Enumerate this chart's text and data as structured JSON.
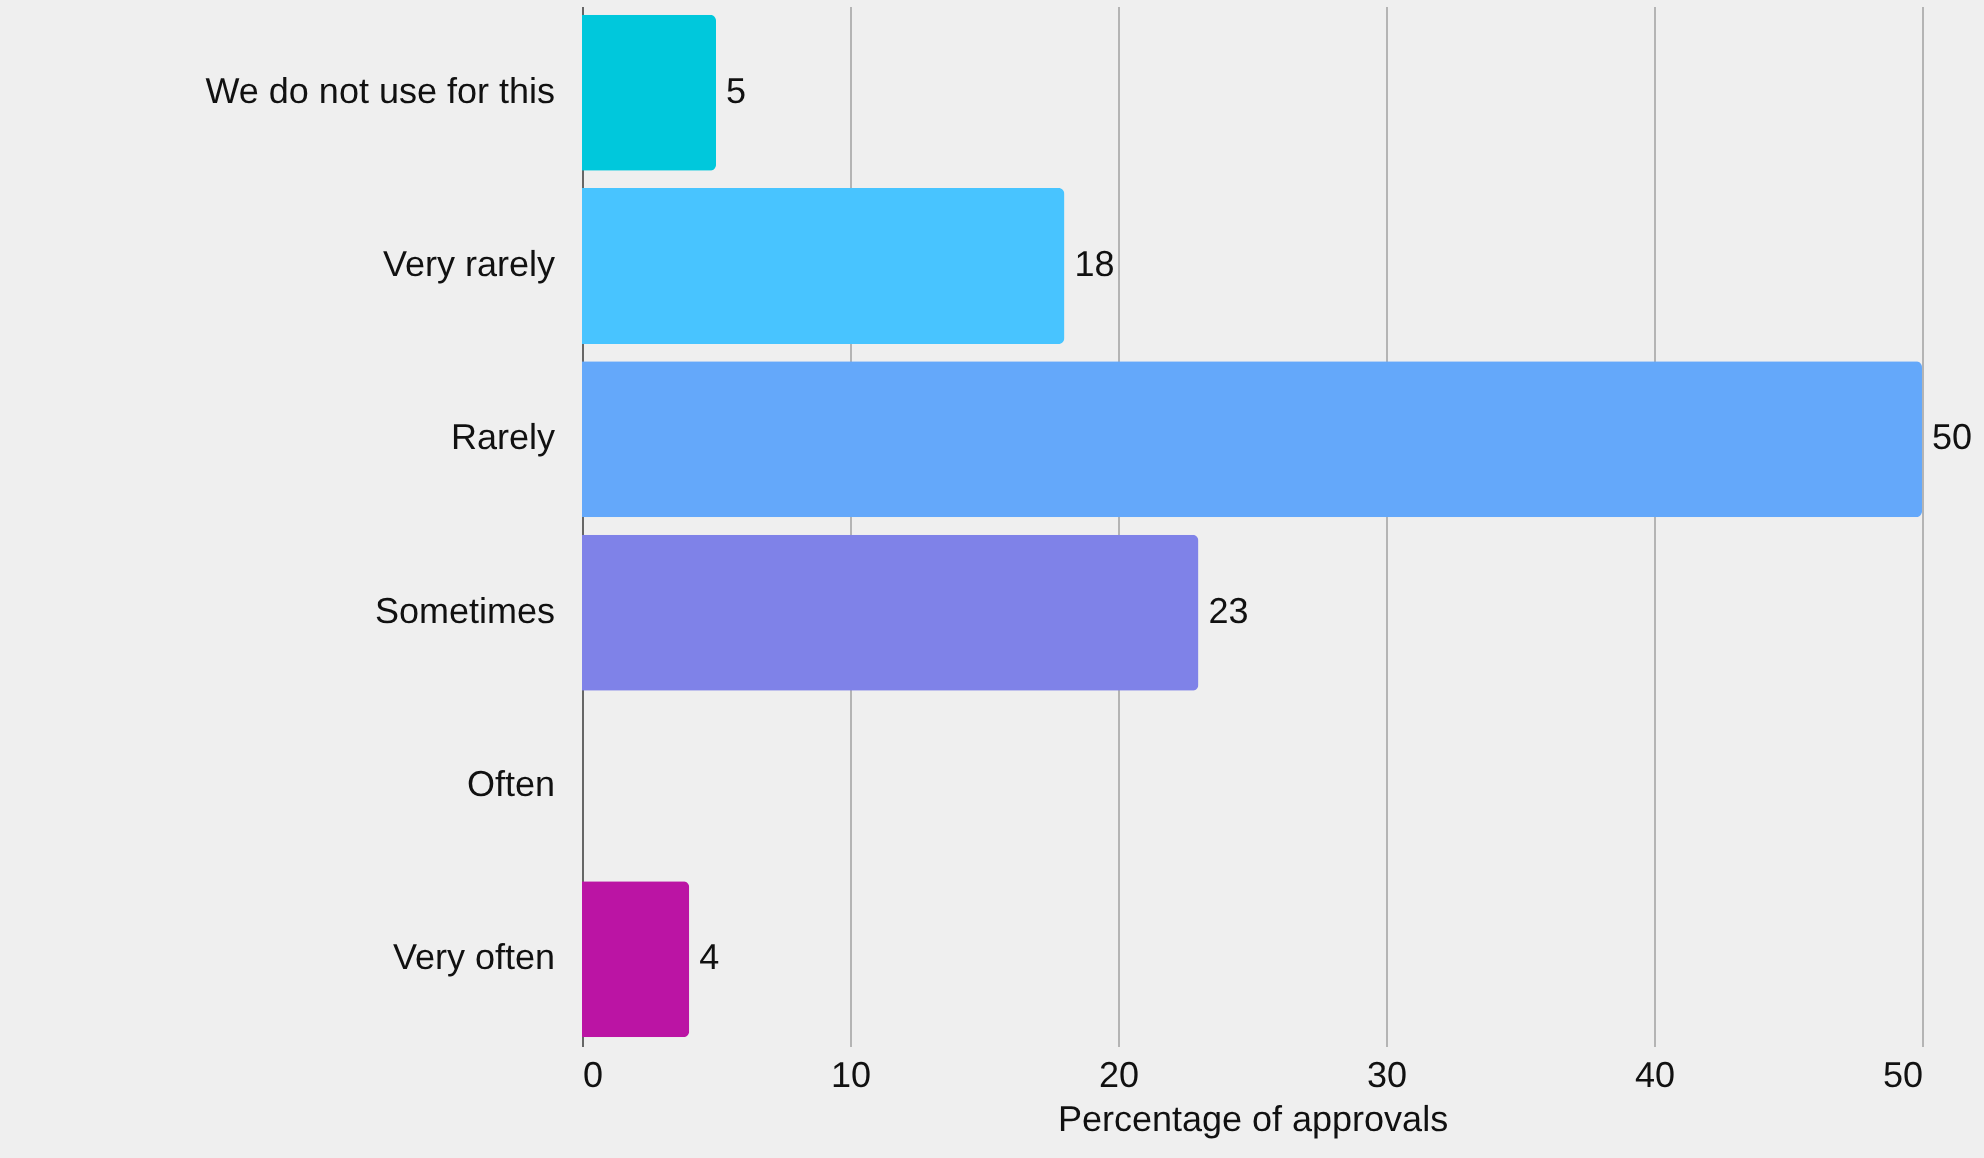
{
  "chart_data": {
    "type": "bar",
    "orientation": "horizontal",
    "xlabel": "Percentage of approvals",
    "categories": [
      "We do not use for this",
      "Very rarely",
      "Rarely",
      "Sometimes",
      "Often",
      "Very often"
    ],
    "values": [
      5,
      18,
      50,
      23,
      0,
      4
    ],
    "colors": [
      "#00c8dc",
      "#48c4ff",
      "#64a8fa",
      "#7f82e8",
      "#a05ac8",
      "#bb14a4"
    ],
    "value_labels": [
      "5",
      "18",
      "50",
      "23",
      null,
      "4"
    ],
    "xlim": [
      0,
      50
    ],
    "xticks": [
      0,
      10,
      20,
      30,
      40,
      50
    ],
    "grid": "x"
  }
}
